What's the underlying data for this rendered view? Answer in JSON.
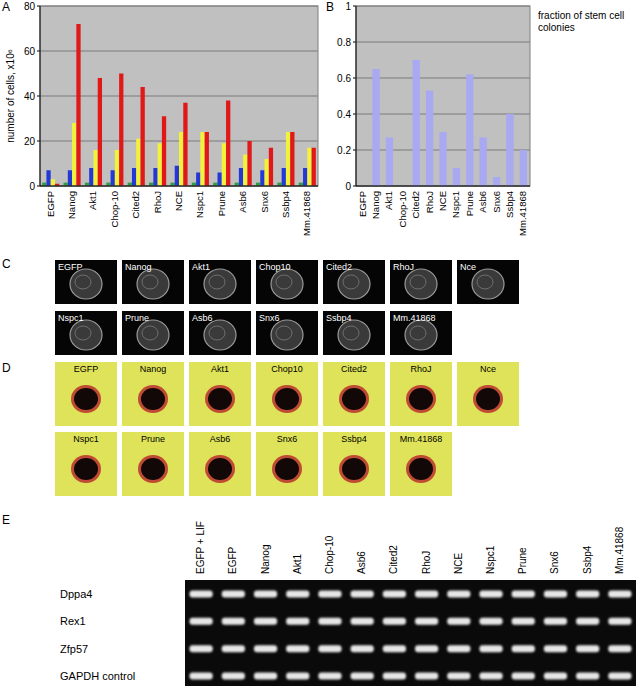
{
  "chart_data": [
    {
      "type": "bar",
      "panel_label": "A",
      "y_label": "number of cells, x10⁶",
      "categories": [
        "EGFP",
        "Nanog",
        "Akt1",
        "Chop-10",
        "Cited2",
        "RhoJ",
        "NCE",
        "Nspc1",
        "Prune",
        "Asb6",
        "Snx6",
        "Ssbp4",
        "Mm.41868"
      ],
      "series": [
        {
          "color": "#2e9e3e",
          "values": [
            1.5,
            1.5,
            1.5,
            1.5,
            1.5,
            1.5,
            1.5,
            1.5,
            1.5,
            1.5,
            1.5,
            1.5,
            1.5
          ]
        },
        {
          "color": "#2438d6",
          "values": [
            7,
            7,
            8,
            7,
            8,
            8,
            9,
            6,
            6,
            8,
            7,
            8,
            8
          ]
        },
        {
          "color": "#f2f23c",
          "values": [
            3,
            28,
            16,
            16,
            21,
            19,
            24,
            24,
            19,
            14,
            12,
            24,
            17
          ]
        },
        {
          "color": "#e01818",
          "values": [
            1,
            72,
            48,
            50,
            44,
            31,
            37,
            24,
            38,
            20,
            17,
            24,
            17
          ]
        }
      ],
      "ylim": [
        0,
        80
      ],
      "yticks": [
        0,
        20,
        40,
        60,
        80
      ],
      "grid": true
    },
    {
      "type": "bar",
      "panel_label": "B",
      "y_label": "fraction of stem cell colonies",
      "categories": [
        "EGFP",
        "Nanog",
        "Akt1",
        "Chop-10",
        "Cited2",
        "RhoJ",
        "NCE",
        "Nspc1",
        "Prune",
        "Asb6",
        "Snx6",
        "Ssbp4",
        "Mm.41868"
      ],
      "values": [
        0,
        0.65,
        0.27,
        0,
        0.7,
        0.53,
        0.3,
        0.1,
        0.62,
        0.27,
        0.05,
        0.4,
        0.2
      ],
      "color": "#a9a9f2",
      "ylim": [
        0,
        1
      ],
      "yticks": [
        0,
        0.2,
        0.4,
        0.6,
        0.8,
        1
      ],
      "grid": true
    }
  ],
  "panels": {
    "C": {
      "label": "C",
      "images": [
        "EGFP",
        "Nanog",
        "Akt1",
        "Chop10",
        "Cited2",
        "RhoJ",
        "Nce",
        "Nspc1",
        "Prune",
        "Asb6",
        "Snx6",
        "Ssbp4",
        "Mm.41868"
      ]
    },
    "D": {
      "label": "D",
      "images": [
        "EGFP",
        "Nanog",
        "Akt1",
        "Chop10",
        "Cited2",
        "RhoJ",
        "Nce",
        "Nspc1",
        "Prune",
        "Asb6",
        "Snx6",
        "Ssbp4",
        "Mm.41868"
      ]
    },
    "E": {
      "label": "E",
      "lanes": [
        "EGFP + LIF",
        "EGFP",
        "Nanog",
        "Akt1",
        "Chop-10",
        "Asb6",
        "Cited2",
        "RhoJ",
        "NCE",
        "Nspc1",
        "Prune",
        "Snx6",
        "Ssbp4",
        "Mm.41868"
      ],
      "genes": [
        "Dppa4",
        "Rex1",
        "Zfp57",
        "GAPDH control"
      ]
    }
  }
}
